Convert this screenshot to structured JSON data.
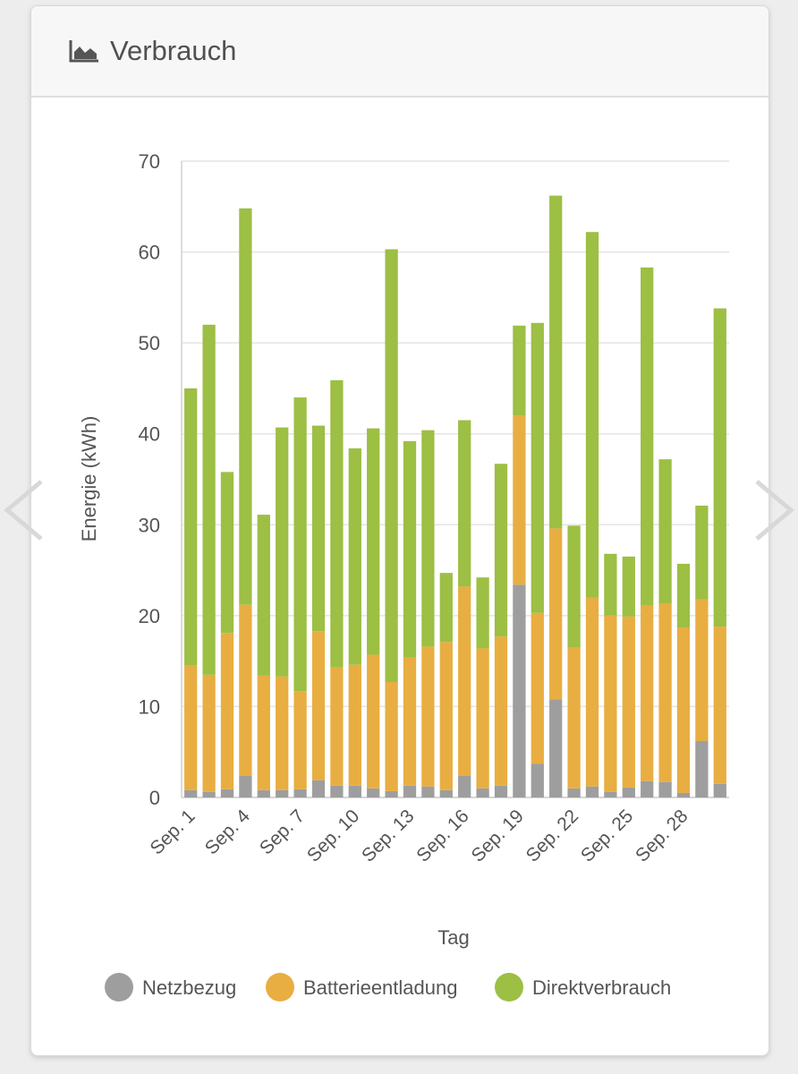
{
  "header": {
    "title": "Verbrauch",
    "icon": "area-chart-icon"
  },
  "navigation": {
    "prev_icon": "chevron-left-icon",
    "next_icon": "chevron-right-icon"
  },
  "colors": {
    "netzbezug": "#9e9e9e",
    "batterie": "#e8ae41",
    "direkt": "#9cbf44"
  },
  "chart_data": {
    "type": "bar",
    "stacked": true,
    "title": "",
    "xlabel": "Tag",
    "ylabel": "Energie (kWh)",
    "ylim": [
      0,
      70
    ],
    "yticks": [
      0,
      10,
      20,
      30,
      40,
      50,
      60,
      70
    ],
    "grid": true,
    "legend_position": "bottom",
    "categories": [
      "Sep. 1",
      "Sep. 2",
      "Sep. 3",
      "Sep. 4",
      "Sep. 5",
      "Sep. 6",
      "Sep. 7",
      "Sep. 8",
      "Sep. 9",
      "Sep. 10",
      "Sep. 11",
      "Sep. 12",
      "Sep. 13",
      "Sep. 14",
      "Sep. 15",
      "Sep. 16",
      "Sep. 17",
      "Sep. 18",
      "Sep. 19",
      "Sep. 20",
      "Sep. 21",
      "Sep. 22",
      "Sep. 23",
      "Sep. 24",
      "Sep. 25",
      "Sep. 26",
      "Sep. 27",
      "Sep. 28",
      "Sep. 29",
      "Sep. 30"
    ],
    "xtick_labels": [
      "Sep. 1",
      "Sep. 4",
      "Sep. 7",
      "Sep. 10",
      "Sep. 13",
      "Sep. 16",
      "Sep. 19",
      "Sep. 22",
      "Sep. 25",
      "Sep. 28"
    ],
    "series": [
      {
        "name": "Netzbezug",
        "color": "#9e9e9e",
        "values": [
          0.8,
          0.6,
          0.9,
          2.4,
          0.8,
          0.8,
          0.9,
          1.9,
          1.3,
          1.3,
          1.0,
          0.7,
          1.3,
          1.2,
          0.8,
          2.4,
          1.0,
          1.3,
          23.4,
          3.7,
          10.8,
          1.0,
          1.2,
          0.6,
          1.1,
          1.8,
          1.7,
          0.5,
          6.2,
          1.5
        ]
      },
      {
        "name": "Batterieentladung",
        "color": "#e8ae41",
        "values": [
          13.7,
          12.9,
          17.2,
          18.8,
          12.6,
          12.5,
          10.8,
          16.4,
          13.0,
          13.3,
          14.7,
          12.0,
          14.1,
          15.4,
          16.3,
          20.8,
          15.4,
          16.4,
          18.6,
          16.6,
          18.8,
          15.5,
          20.8,
          19.4,
          18.8,
          19.3,
          19.6,
          18.2,
          15.6,
          17.3
        ]
      },
      {
        "name": "Direktverbrauch",
        "color": "#9cbf44",
        "values": [
          30.5,
          38.5,
          17.7,
          43.6,
          17.7,
          27.4,
          32.3,
          22.6,
          31.6,
          23.8,
          24.9,
          47.6,
          23.8,
          23.8,
          7.6,
          18.3,
          7.8,
          19.0,
          9.9,
          31.9,
          36.6,
          13.4,
          40.2,
          6.8,
          6.6,
          37.2,
          15.9,
          7.0,
          10.3,
          35.0
        ]
      }
    ]
  }
}
